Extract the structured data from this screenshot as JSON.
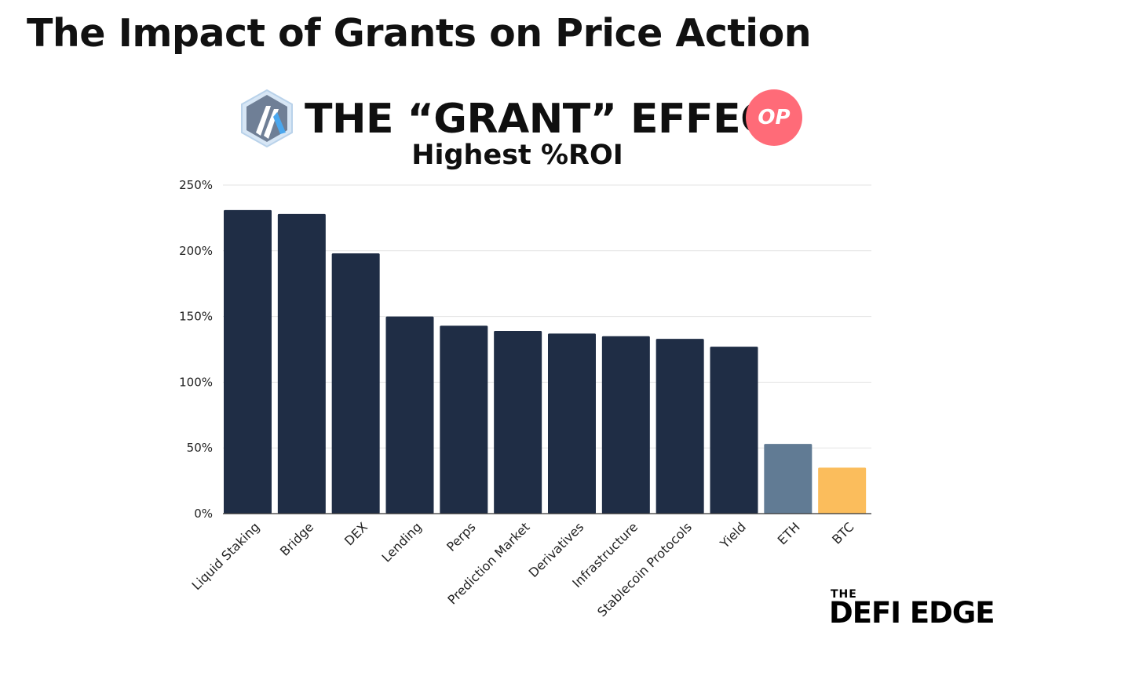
{
  "page": {
    "title": "The Impact of Grants on Price Action"
  },
  "header": {
    "logo_left_icon": "arbitrum-logo-icon",
    "logo_right_label": "OP",
    "logo_right_color": "#ff6b78"
  },
  "brand": {
    "small": "THE",
    "main": "DEFI EDGE"
  },
  "chart_data": {
    "type": "bar",
    "title": "THE “GRANT” EFFECT",
    "subtitle": "Highest %ROI",
    "xlabel": "",
    "ylabel": "",
    "categories": [
      "Liquid Staking",
      "Bridge",
      "DEX",
      "Lending",
      "Perps",
      "Prediction Market",
      "Derivatives",
      "Infrastructure",
      "Stablecoin Protocols",
      "Yield",
      "ETH",
      "BTC"
    ],
    "values": [
      231,
      228,
      198,
      150,
      143,
      139,
      137,
      135,
      133,
      127,
      53,
      35
    ],
    "bar_colors": [
      "#1f2d45",
      "#1f2d45",
      "#1f2d45",
      "#1f2d45",
      "#1f2d45",
      "#1f2d45",
      "#1f2d45",
      "#1f2d45",
      "#1f2d45",
      "#1f2d45",
      "#617b94",
      "#fbbd5c"
    ],
    "ylim": [
      0,
      250
    ],
    "y_ticks": [
      0,
      50,
      100,
      150,
      200,
      250
    ],
    "y_tick_labels": [
      "0%",
      "50%",
      "100%",
      "150%",
      "200%",
      "250%"
    ],
    "grid": true,
    "legend": "none"
  }
}
